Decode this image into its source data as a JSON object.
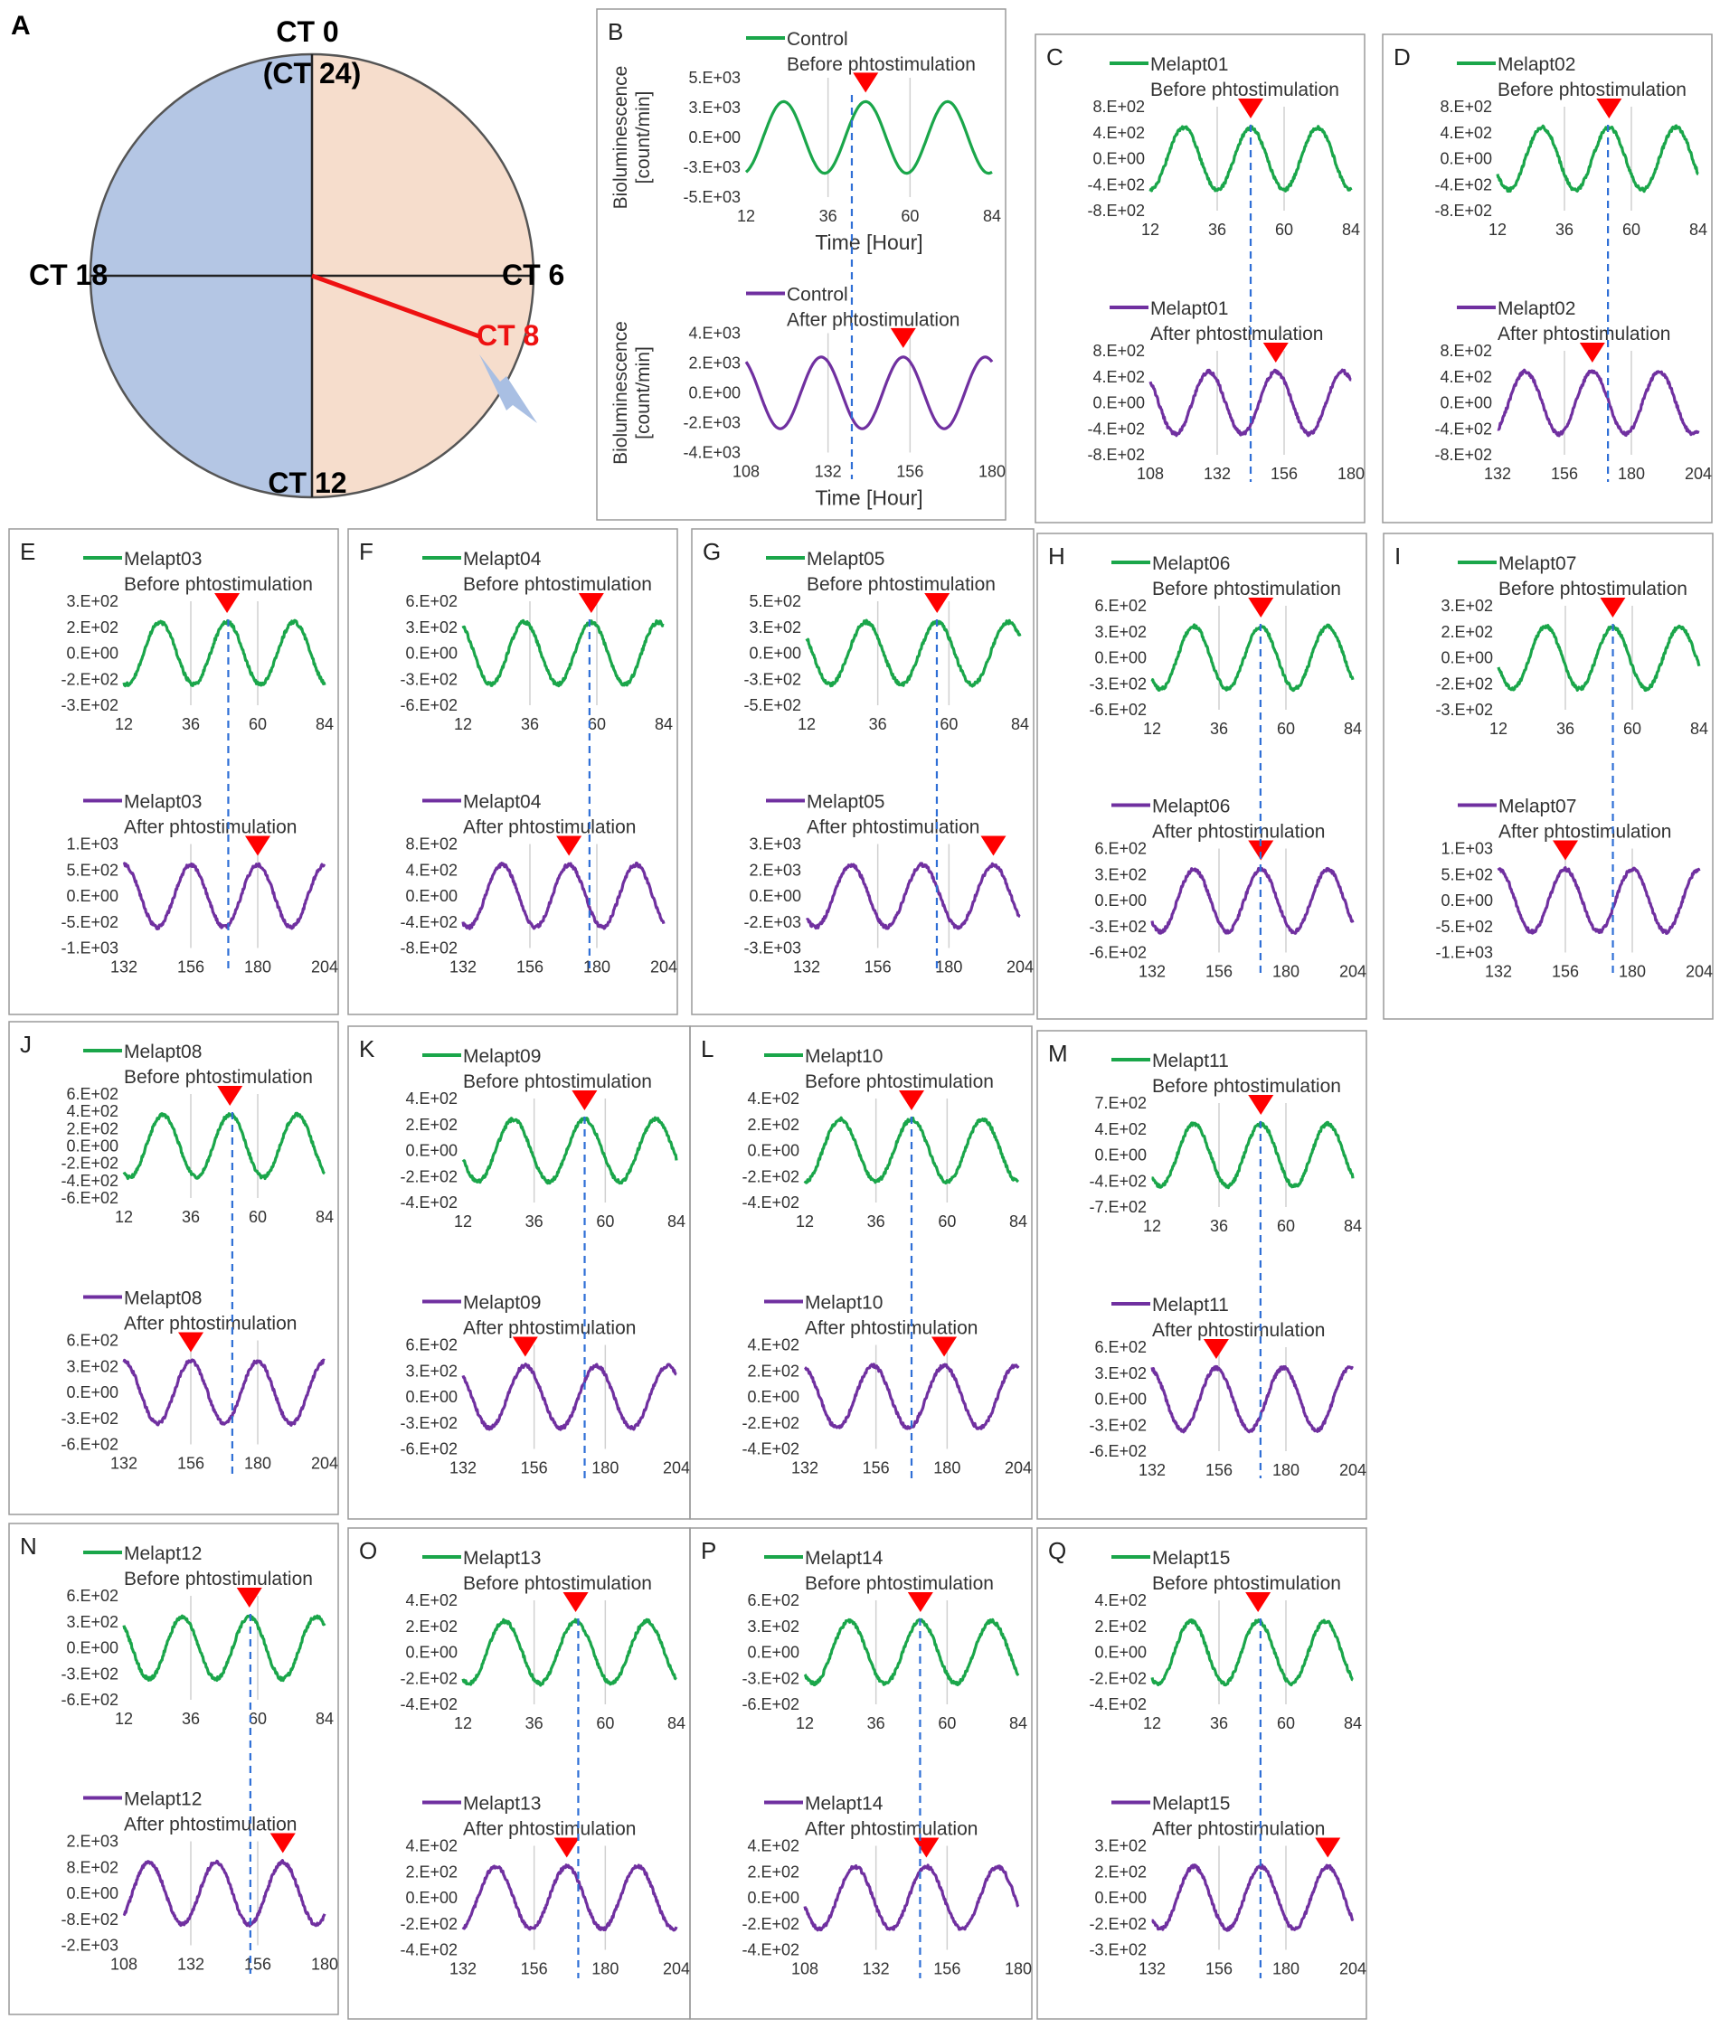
{
  "colors": {
    "before": "#1aa64a",
    "after": "#7030a0",
    "marker": "#ff0000",
    "dashed": "#2f6fd6",
    "light": "#f4a582",
    "dark": "#92a9d6"
  },
  "panel_a": {
    "letter": "A",
    "labels": {
      "ct0": "CT  0",
      "ct24": "(CT 24)",
      "ct6": "CT 6",
      "ct12": "CT 12",
      "ct18": "CT 18",
      "ct8": "CT 8"
    }
  },
  "chart_data": [
    {
      "panel": "B",
      "type": "line",
      "before": {
        "name": "Control",
        "sub": "Before phtostimulation",
        "yticks": [
          "5.E+03",
          "3.E+03",
          "0.E+00",
          "-3.E+03",
          "-5.E+03"
        ],
        "xticks": [
          "12",
          "36",
          "60",
          "84"
        ],
        "peak": 47,
        "ylabel1": "Bioluminescence",
        "ylabel2": "[count/min]",
        "xlabel": "Time [Hour]"
      },
      "after": {
        "name": "Control",
        "sub": "After phtostimulation",
        "yticks": [
          "4.E+03",
          "2.E+03",
          "0.E+00",
          "-2.E+03",
          "-4.E+03"
        ],
        "xticks": [
          "108",
          "132",
          "156",
          "180"
        ],
        "peak": 154,
        "ylabel1": "Bioluminescence",
        "ylabel2": "[count/min]",
        "xlabel": "Time [Hour]"
      },
      "dash": [
        0.43,
        0.43
      ]
    },
    {
      "panel": "C",
      "type": "line",
      "before": {
        "name": "Melapt01",
        "sub": "Before phtostimulation",
        "yticks": [
          "8.E+02",
          "4.E+02",
          "0.E+00",
          "-4.E+02",
          "-8.E+02"
        ],
        "xticks": [
          "12",
          "36",
          "60",
          "84"
        ],
        "peak": 48
      },
      "after": {
        "name": "Melapt01",
        "sub": "After phtostimulation",
        "yticks": [
          "8.E+02",
          "4.E+02",
          "0.E+00",
          "-4.E+02",
          "-8.E+02"
        ],
        "xticks": [
          "108",
          "132",
          "156",
          "180"
        ],
        "peak": 153
      },
      "dash": [
        0.5,
        0.5
      ]
    },
    {
      "panel": "D",
      "type": "line",
      "before": {
        "name": "Melapt02",
        "sub": "Before phtostimulation",
        "yticks": [
          "8.E+02",
          "4.E+02",
          "0.E+00",
          "-4.E+02",
          "-8.E+02"
        ],
        "xticks": [
          "12",
          "36",
          "60",
          "84"
        ],
        "peak": 52
      },
      "after": {
        "name": "Melapt02",
        "sub": "After phtostimulation",
        "yticks": [
          "8.E+02",
          "4.E+02",
          "0.E+00",
          "-4.E+02",
          "-8.E+02"
        ],
        "xticks": [
          "132",
          "156",
          "180",
          "204"
        ],
        "peak": 166
      },
      "dash": [
        0.55,
        0.55
      ]
    },
    {
      "panel": "E",
      "type": "line",
      "before": {
        "name": "Melapt03",
        "sub": "Before phtostimulation",
        "yticks": [
          "3.E+02",
          "2.E+02",
          "0.E+00",
          "-2.E+02",
          "-3.E+02"
        ],
        "xticks": [
          "12",
          "36",
          "60",
          "84"
        ],
        "peak": 49
      },
      "after": {
        "name": "Melapt03",
        "sub": "After phtostimulation",
        "yticks": [
          "1.E+03",
          "5.E+02",
          "0.E+00",
          "-5.E+02",
          "-1.E+03"
        ],
        "xticks": [
          "132",
          "156",
          "180",
          "204"
        ],
        "peak": 180
      },
      "dash": [
        0.52,
        0.52
      ]
    },
    {
      "panel": "F",
      "type": "line",
      "before": {
        "name": "Melapt04",
        "sub": "Before phtostimulation",
        "yticks": [
          "6.E+02",
          "3.E+02",
          "0.E+00",
          "-3.E+02",
          "-6.E+02"
        ],
        "xticks": [
          "12",
          "36",
          "60",
          "84"
        ],
        "peak": 58
      },
      "after": {
        "name": "Melapt04",
        "sub": "After phtostimulation",
        "yticks": [
          "8.E+02",
          "4.E+02",
          "0.E+00",
          "-4.E+02",
          "-8.E+02"
        ],
        "xticks": [
          "132",
          "156",
          "180",
          "204"
        ],
        "peak": 170
      },
      "dash": [
        0.63,
        0.63
      ]
    },
    {
      "panel": "G",
      "type": "line",
      "before": {
        "name": "Melapt05",
        "sub": "Before phtostimulation",
        "yticks": [
          "5.E+02",
          "3.E+02",
          "0.E+00",
          "-3.E+02",
          "-5.E+02"
        ],
        "xticks": [
          "12",
          "36",
          "60",
          "84"
        ],
        "peak": 56
      },
      "after": {
        "name": "Melapt05",
        "sub": "After phtostimulation",
        "yticks": [
          "3.E+03",
          "2.E+03",
          "0.E+00",
          "-2.E+03",
          "-3.E+03"
        ],
        "xticks": [
          "132",
          "156",
          "180",
          "204"
        ],
        "peak": 195
      },
      "dash": [
        0.61,
        0.61
      ]
    },
    {
      "panel": "H",
      "type": "line",
      "before": {
        "name": "Melapt06",
        "sub": "Before phtostimulation",
        "yticks": [
          "6.E+02",
          "3.E+02",
          "0.E+00",
          "-3.E+02",
          "-6.E+02"
        ],
        "xticks": [
          "12",
          "36",
          "60",
          "84"
        ],
        "peak": 51
      },
      "after": {
        "name": "Melapt06",
        "sub": "After phtostimulation",
        "yticks": [
          "6.E+02",
          "3.E+02",
          "0.E+00",
          "-3.E+02",
          "-6.E+02"
        ],
        "xticks": [
          "132",
          "156",
          "180",
          "204"
        ],
        "peak": 171
      },
      "dash": [
        0.54,
        0.54
      ]
    },
    {
      "panel": "I",
      "type": "line",
      "before": {
        "name": "Melapt07",
        "sub": "Before phtostimulation",
        "yticks": [
          "3.E+02",
          "2.E+02",
          "0.E+00",
          "-2.E+02",
          "-3.E+02"
        ],
        "xticks": [
          "12",
          "36",
          "60",
          "84"
        ],
        "peak": 53
      },
      "after": {
        "name": "Melapt07",
        "sub": "After phtostimulation",
        "yticks": [
          "1.E+03",
          "5.E+02",
          "0.E+00",
          "-5.E+02",
          "-1.E+03"
        ],
        "xticks": [
          "132",
          "156",
          "180",
          "204"
        ],
        "peak": 156
      },
      "dash": [
        0.57,
        0.57
      ]
    },
    {
      "panel": "J",
      "type": "line",
      "before": {
        "name": "Melapt08",
        "sub": "Before phtostimulation",
        "yticks": [
          "6.E+02",
          "4.E+02",
          "2.E+02",
          "0.E+00",
          "-2.E+02",
          "-4.E+02",
          "-6.E+02"
        ],
        "xticks": [
          "12",
          "36",
          "60",
          "84"
        ],
        "peak": 50
      },
      "after": {
        "name": "Melapt08",
        "sub": "After phtostimulation",
        "yticks": [
          "6.E+02",
          "3.E+02",
          "0.E+00",
          "-3.E+02",
          "-6.E+02"
        ],
        "xticks": [
          "132",
          "156",
          "180",
          "204"
        ],
        "peak": 156
      },
      "dash": [
        0.54,
        0.54
      ]
    },
    {
      "panel": "K",
      "type": "line",
      "before": {
        "name": "Melapt09",
        "sub": "Before phtostimulation",
        "yticks": [
          "4.E+02",
          "2.E+02",
          "0.E+00",
          "-2.E+02",
          "-4.E+02"
        ],
        "xticks": [
          "12",
          "36",
          "60",
          "84"
        ],
        "peak": 53
      },
      "after": {
        "name": "Melapt09",
        "sub": "After phtostimulation",
        "yticks": [
          "6.E+02",
          "3.E+02",
          "0.E+00",
          "-3.E+02",
          "-6.E+02"
        ],
        "xticks": [
          "132",
          "156",
          "180",
          "204"
        ],
        "peak": 153
      },
      "dash": [
        0.57,
        0.57
      ]
    },
    {
      "panel": "L",
      "type": "line",
      "before": {
        "name": "Melapt10",
        "sub": "Before phtostimulation",
        "yticks": [
          "4.E+02",
          "2.E+02",
          "0.E+00",
          "-2.E+02",
          "-4.E+02"
        ],
        "xticks": [
          "12",
          "36",
          "60",
          "84"
        ],
        "peak": 48
      },
      "after": {
        "name": "Melapt10",
        "sub": "After phtostimulation",
        "yticks": [
          "4.E+02",
          "2.E+02",
          "0.E+00",
          "-2.E+02",
          "-4.E+02"
        ],
        "xticks": [
          "132",
          "156",
          "180",
          "204"
        ],
        "peak": 179
      },
      "dash": [
        0.5,
        0.5
      ]
    },
    {
      "panel": "M",
      "type": "line",
      "before": {
        "name": "Melapt11",
        "sub": "Before phtostimulation",
        "yticks": [
          "7.E+02",
          "4.E+02",
          "0.E+00",
          "-4.E+02",
          "-7.E+02"
        ],
        "xticks": [
          "12",
          "36",
          "60",
          "84"
        ],
        "peak": 51
      },
      "after": {
        "name": "Melapt11",
        "sub": "After phtostimulation",
        "yticks": [
          "6.E+02",
          "3.E+02",
          "0.E+00",
          "-3.E+02",
          "-6.E+02"
        ],
        "xticks": [
          "132",
          "156",
          "180",
          "204"
        ],
        "peak": 155
      },
      "dash": [
        0.54,
        0.54
      ]
    },
    {
      "panel": "N",
      "type": "line",
      "before": {
        "name": "Melapt12",
        "sub": "Before phtostimulation",
        "yticks": [
          "6.E+02",
          "3.E+02",
          "0.E+00",
          "-3.E+02",
          "-6.E+02"
        ],
        "xticks": [
          "12",
          "36",
          "60",
          "84"
        ],
        "peak": 57
      },
      "after": {
        "name": "Melapt12",
        "sub": "After phtostimulation",
        "yticks": [
          "2.E+03",
          "8.E+02",
          "0.E+00",
          "-8.E+02",
          "-2.E+03"
        ],
        "xticks": [
          "108",
          "132",
          "156",
          "180"
        ],
        "peak": 165
      },
      "dash": [
        0.63,
        0.63
      ]
    },
    {
      "panel": "O",
      "type": "line",
      "before": {
        "name": "Melapt13",
        "sub": "Before phtostimulation",
        "yticks": [
          "4.E+02",
          "2.E+02",
          "0.E+00",
          "-2.E+02",
          "-4.E+02"
        ],
        "xticks": [
          "12",
          "36",
          "60",
          "84"
        ],
        "peak": 50
      },
      "after": {
        "name": "Melapt13",
        "sub": "After phtostimulation",
        "yticks": [
          "4.E+02",
          "2.E+02",
          "0.E+00",
          "-2.E+02",
          "-4.E+02"
        ],
        "xticks": [
          "132",
          "156",
          "180",
          "204"
        ],
        "peak": 167
      },
      "dash": [
        0.54,
        0.54
      ]
    },
    {
      "panel": "P",
      "type": "line",
      "before": {
        "name": "Melapt14",
        "sub": "Before phtostimulation",
        "yticks": [
          "6.E+02",
          "3.E+02",
          "0.E+00",
          "-3.E+02",
          "-6.E+02"
        ],
        "xticks": [
          "12",
          "36",
          "60",
          "84"
        ],
        "peak": 51
      },
      "after": {
        "name": "Melapt14",
        "sub": "After phtostimulation",
        "yticks": [
          "4.E+02",
          "2.E+02",
          "0.E+00",
          "-2.E+02",
          "-4.E+02"
        ],
        "xticks": [
          "108",
          "132",
          "156",
          "180"
        ],
        "peak": 149
      },
      "dash": [
        0.54,
        0.54
      ]
    },
    {
      "panel": "Q",
      "type": "line",
      "before": {
        "name": "Melapt15",
        "sub": "Before phtostimulation",
        "yticks": [
          "4.E+02",
          "2.E+02",
          "0.E+00",
          "-2.E+02",
          "-4.E+02"
        ],
        "xticks": [
          "12",
          "36",
          "60",
          "84"
        ],
        "peak": 50
      },
      "after": {
        "name": "Melapt15",
        "sub": "After phtostimulation",
        "yticks": [
          "3.E+02",
          "2.E+02",
          "0.E+00",
          "-2.E+02",
          "-3.E+02"
        ],
        "xticks": [
          "132",
          "156",
          "180",
          "204"
        ],
        "peak": 195
      },
      "dash": [
        0.54,
        0.54
      ]
    }
  ]
}
